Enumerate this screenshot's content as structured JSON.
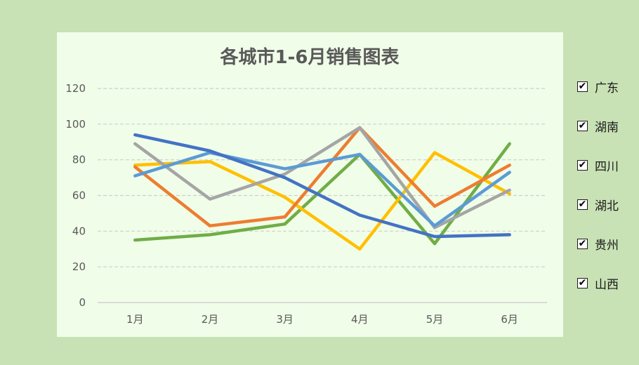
{
  "chart_data": {
    "type": "line",
    "title": "各城市1-6月销售图表",
    "categories": [
      "1月",
      "2月",
      "3月",
      "4月",
      "5月",
      "6月"
    ],
    "yticks": [
      "0",
      "20",
      "40",
      "60",
      "80",
      "100",
      "120"
    ],
    "ylim": [
      0,
      120
    ],
    "grid": true,
    "legend_position": "right",
    "series": [
      {
        "name": "广东",
        "color": "#4472c4",
        "values": [
          94,
          85,
          70,
          49,
          37,
          38
        ]
      },
      {
        "name": "湖南",
        "color": "#ed7d31",
        "values": [
          76,
          43,
          48,
          98,
          54,
          77
        ]
      },
      {
        "name": "四川",
        "color": "#a5a5a5",
        "values": [
          89,
          58,
          72,
          98,
          42,
          63
        ]
      },
      {
        "name": "湖北",
        "color": "#ffc000",
        "values": [
          77,
          79,
          59,
          30,
          84,
          61
        ]
      },
      {
        "name": "贵州",
        "color": "#5b9bd5",
        "values": [
          71,
          84,
          75,
          83,
          43,
          73
        ]
      },
      {
        "name": "山西",
        "color": "#70ad47",
        "values": [
          35,
          38,
          44,
          83,
          33,
          89
        ]
      }
    ]
  },
  "legend": {
    "items": [
      {
        "label": "广东",
        "checked": true
      },
      {
        "label": "湖南",
        "checked": true
      },
      {
        "label": "四川",
        "checked": true
      },
      {
        "label": "湖北",
        "checked": true
      },
      {
        "label": "贵州",
        "checked": true
      },
      {
        "label": "山西",
        "checked": true
      }
    ],
    "check_glyph": "✔"
  }
}
